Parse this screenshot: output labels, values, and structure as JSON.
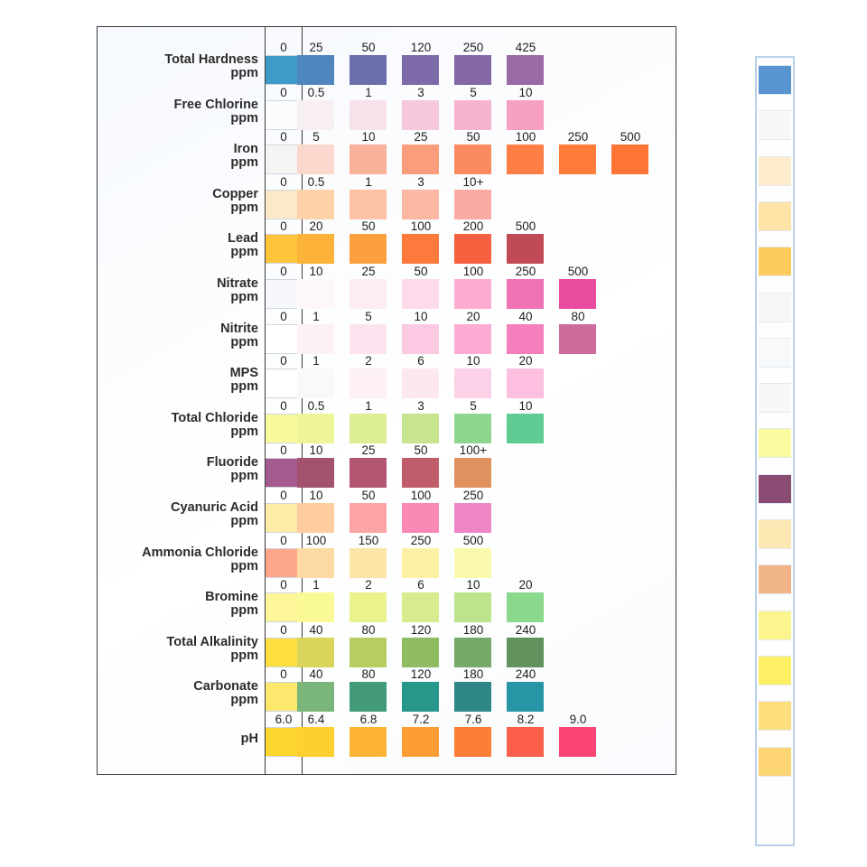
{
  "chart": {
    "rows": [
      {
        "label": "Total Hardness",
        "unit": "ppm",
        "base_value": "0",
        "base_color": "#3f9ac9",
        "steps": [
          {
            "value": "25",
            "color": "#4f86bf"
          },
          {
            "value": "50",
            "color": "#6a6eab"
          },
          {
            "value": "120",
            "color": "#7d6aa8"
          },
          {
            "value": "250",
            "color": "#8567a6"
          },
          {
            "value": "425",
            "color": "#9a6aa6"
          }
        ]
      },
      {
        "label": "Free Chlorine",
        "unit": "ppm",
        "base_value": "0",
        "base_color": "#fbfcfd",
        "steps": [
          {
            "value": "0.5",
            "color": "#f8eff3"
          },
          {
            "value": "1",
            "color": "#f6e2ea"
          },
          {
            "value": "3",
            "color": "#f6c8dc"
          },
          {
            "value": "5",
            "color": "#f7b4d0"
          },
          {
            "value": "10",
            "color": "#f79fc1"
          }
        ]
      },
      {
        "label": "Iron",
        "unit": "ppm",
        "base_value": "0",
        "base_color": "#f5f4f3",
        "steps": [
          {
            "value": "5",
            "color": "#fbd7cd"
          },
          {
            "value": "10",
            "color": "#f9b199"
          },
          {
            "value": "25",
            "color": "#f99d7d"
          },
          {
            "value": "50",
            "color": "#fb8a61"
          },
          {
            "value": "100",
            "color": "#fd7f45"
          },
          {
            "value": "250",
            "color": "#fd7c3a"
          },
          {
            "value": "500",
            "color": "#fd7435"
          }
        ]
      },
      {
        "label": "Copper",
        "unit": "ppm",
        "base_value": "0",
        "base_color": "#fde8c7",
        "steps": [
          {
            "value": "0.5",
            "color": "#fdd2a9"
          },
          {
            "value": "1",
            "color": "#fcc2a5"
          },
          {
            "value": "3",
            "color": "#fbb6a4"
          },
          {
            "value": "10+",
            "color": "#faaba3"
          }
        ]
      },
      {
        "label": "Lead",
        "unit": "ppm",
        "base_value": "0",
        "base_color": "#fec43a",
        "steps": [
          {
            "value": "20",
            "color": "#fdb339"
          },
          {
            "value": "50",
            "color": "#fca03e"
          },
          {
            "value": "100",
            "color": "#fc7b3c"
          },
          {
            "value": "200",
            "color": "#f9603f"
          },
          {
            "value": "500",
            "color": "#c04b57"
          }
        ]
      },
      {
        "label": "Nitrate",
        "unit": "ppm",
        "base_value": "0",
        "base_color": "#f6f8fb",
        "steps": [
          {
            "value": "10",
            "color": "#fdf7f8"
          },
          {
            "value": "25",
            "color": "#fdecf4"
          },
          {
            "value": "50",
            "color": "#fddbea"
          },
          {
            "value": "100",
            "color": "#fbacd0"
          },
          {
            "value": "250",
            "color": "#ef72b5"
          },
          {
            "value": "500",
            "color": "#e94c9f"
          }
        ]
      },
      {
        "label": "Nitrite",
        "unit": "ppm",
        "base_value": "0",
        "base_color": "#ffffff",
        "steps": [
          {
            "value": "1",
            "color": "#fdf1f8"
          },
          {
            "value": "5",
            "color": "#fde3f0"
          },
          {
            "value": "10",
            "color": "#fcc9e2"
          },
          {
            "value": "20",
            "color": "#fbabd4"
          },
          {
            "value": "40",
            "color": "#f57fbd"
          },
          {
            "value": "80",
            "color": "#cf6b9c"
          }
        ]
      },
      {
        "label": "MPS",
        "unit": "ppm",
        "base_value": "0",
        "base_color": "#ffffff",
        "steps": [
          {
            "value": "1",
            "color": "#fbf8fb"
          },
          {
            "value": "2",
            "color": "#fdf0f6"
          },
          {
            "value": "6",
            "color": "#fde8f1"
          },
          {
            "value": "10",
            "color": "#fdd2e8"
          },
          {
            "value": "20",
            "color": "#fcbfdf"
          }
        ]
      },
      {
        "label": "Total Chloride",
        "unit": "ppm",
        "base_value": "0",
        "base_color": "#f9fb9a",
        "steps": [
          {
            "value": "0.5",
            "color": "#eef598"
          },
          {
            "value": "1",
            "color": "#dcee93"
          },
          {
            "value": "3",
            "color": "#c7e491"
          },
          {
            "value": "5",
            "color": "#8ed590"
          },
          {
            "value": "10",
            "color": "#5fcb92"
          }
        ]
      },
      {
        "label": "Fluoride",
        "unit": "ppm",
        "base_value": "0",
        "base_color": "#a55a8f",
        "steps": [
          {
            "value": "10",
            "color": "#a2526f"
          },
          {
            "value": "25",
            "color": "#b1566e"
          },
          {
            "value": "50",
            "color": "#c05d6b"
          },
          {
            "value": "100+",
            "color": "#e0925e"
          }
        ]
      },
      {
        "label": "Cyanuric Acid",
        "unit": "ppm",
        "base_value": "0",
        "base_color": "#fdeca5",
        "steps": [
          {
            "value": "10",
            "color": "#fdcc9f"
          },
          {
            "value": "50",
            "color": "#fca4a6"
          },
          {
            "value": "100",
            "color": "#fa89b5"
          },
          {
            "value": "250",
            "color": "#ef87c7"
          }
        ]
      },
      {
        "label": "Ammonia Chloride",
        "unit": "ppm",
        "base_value": "0",
        "base_color": "#fda68c",
        "steps": [
          {
            "value": "100",
            "color": "#fddaa4"
          },
          {
            "value": "150",
            "color": "#fce5a6"
          },
          {
            "value": "250",
            "color": "#fbf0a4"
          },
          {
            "value": "500",
            "color": "#fbf9ad"
          }
        ]
      },
      {
        "label": "Bromine",
        "unit": "ppm",
        "base_value": "0",
        "base_color": "#fdf79a",
        "steps": [
          {
            "value": "1",
            "color": "#f9f995"
          },
          {
            "value": "2",
            "color": "#eaf28e"
          },
          {
            "value": "6",
            "color": "#d8ec8f"
          },
          {
            "value": "10",
            "color": "#bbe48c"
          },
          {
            "value": "20",
            "color": "#89d88d"
          }
        ]
      },
      {
        "label": "Total Alkalinity",
        "unit": "ppm",
        "base_value": "0",
        "base_color": "#fdde3f",
        "steps": [
          {
            "value": "40",
            "color": "#d9d45a"
          },
          {
            "value": "80",
            "color": "#b6cd62"
          },
          {
            "value": "120",
            "color": "#8fbc63"
          },
          {
            "value": "180",
            "color": "#75aa6b"
          },
          {
            "value": "240",
            "color": "#62935f"
          }
        ]
      },
      {
        "label": "Carbonate",
        "unit": "ppm",
        "base_value": "0",
        "base_color": "#fde76d",
        "steps": [
          {
            "value": "40",
            "color": "#7ab679"
          },
          {
            "value": "80",
            "color": "#429a78"
          },
          {
            "value": "120",
            "color": "#26978a"
          },
          {
            "value": "180",
            "color": "#2e8786"
          },
          {
            "value": "240",
            "color": "#2795a6"
          }
        ]
      },
      {
        "label": "pH",
        "unit": "",
        "base_value": "6.0",
        "base_color": "#fdd62d",
        "steps": [
          {
            "value": "6.4",
            "color": "#fdcf2f"
          },
          {
            "value": "6.8",
            "color": "#fdb335"
          },
          {
            "value": "7.2",
            "color": "#fc9c35"
          },
          {
            "value": "7.6",
            "color": "#fd7e37"
          },
          {
            "value": "8.2",
            "color": "#fb5f4c"
          },
          {
            "value": "9.0",
            "color": "#fb4675"
          }
        ]
      }
    ]
  },
  "strip": {
    "pads": [
      "#5895d0",
      "#f8f8f8",
      "#fdeccd",
      "#fde3a5",
      "#fdcb5b",
      "#f6f7f9",
      "#f8f9fa",
      "#f7f8f9",
      "#fcfa9f",
      "#8a4c72",
      "#fde7b2",
      "#f0b486",
      "#fcf58d",
      "#fdf065",
      "#fddf7e",
      "#fdd574"
    ]
  }
}
